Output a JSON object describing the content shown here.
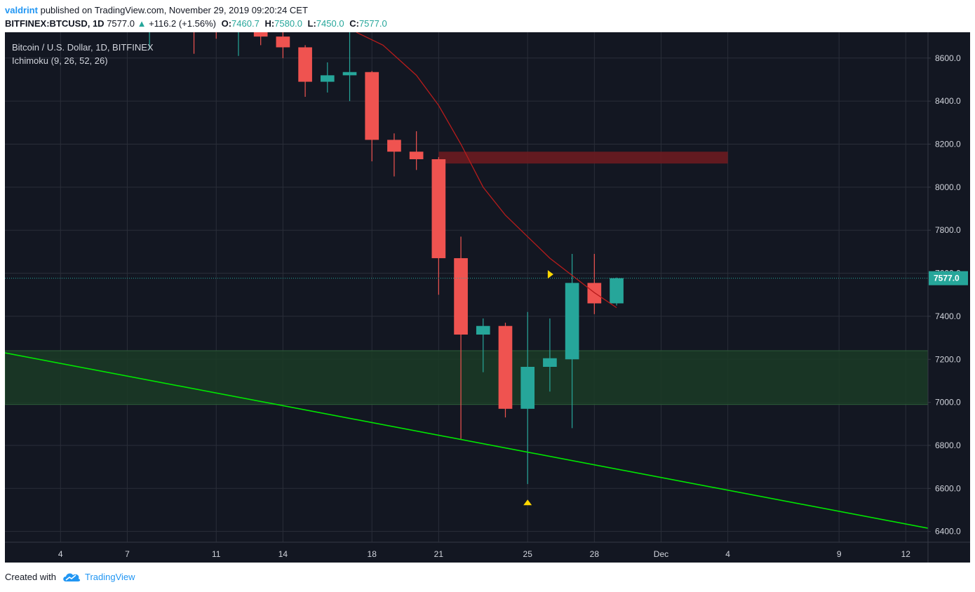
{
  "header": {
    "author": "valdrint",
    "published_text": "published on TradingView.com, November 29, 2019 09:20:24 CET",
    "symbol": "BITFINEX:BTCUSD, 1D",
    "last": "7577.0",
    "change": "+116.2 (+1.56%)",
    "ohlc": {
      "o_label": "O:",
      "o": "7460.7",
      "h_label": "H:",
      "h": "7580.0",
      "l_label": "L:",
      "l": "7450.0",
      "c_label": "C:",
      "c": "7577.0"
    }
  },
  "chart_data": {
    "type": "candlestick",
    "title": "Bitcoin / U.S. Dollar, 1D, BITFINEX",
    "indicator": "Ichimoku (9, 26, 52, 26)",
    "last_price_label": "7577.0",
    "ylim": [
      6350,
      8720
    ],
    "yticks": [
      6400,
      6600,
      6800,
      7000,
      7200,
      7400,
      7600,
      7800,
      8000,
      8200,
      8400,
      8600
    ],
    "ytick_labels": [
      "6400.0",
      "6600.0",
      "6800.0",
      "7000.0",
      "7200.0",
      "7400.0",
      "7600.0",
      "7800.0",
      "8000.0",
      "8200.0",
      "8400.0",
      "8600.0"
    ],
    "x_domain": [
      1.5,
      43.0
    ],
    "xticks": [
      {
        "day": 4,
        "label": "4"
      },
      {
        "day": 7,
        "label": "7"
      },
      {
        "day": 11,
        "label": "11"
      },
      {
        "day": 14,
        "label": "14"
      },
      {
        "day": 18,
        "label": "18"
      },
      {
        "day": 21,
        "label": "21"
      },
      {
        "day": 25,
        "label": "25"
      },
      {
        "day": 28,
        "label": "28"
      },
      {
        "day": 31,
        "label": "Dec"
      },
      {
        "day": 34,
        "label": "4"
      },
      {
        "day": 39,
        "label": "9"
      },
      {
        "day": 42,
        "label": "12"
      }
    ],
    "candles": [
      {
        "day": 8,
        "open": 8760,
        "high": 8800,
        "low": 8640,
        "close": 8760
      },
      {
        "day": 10,
        "open": 8790,
        "high": 8820,
        "low": 8620,
        "close": 8780
      },
      {
        "day": 11,
        "open": 8770,
        "high": 8790,
        "low": 8690,
        "close": 8760
      },
      {
        "day": 12,
        "open": 8720,
        "high": 8760,
        "low": 8610,
        "close": 8730
      },
      {
        "day": 13,
        "open": 8730,
        "high": 8780,
        "low": 8660,
        "close": 8700
      },
      {
        "day": 14,
        "open": 8700,
        "high": 8760,
        "low": 8600,
        "close": 8650
      },
      {
        "day": 15,
        "open": 8650,
        "high": 8660,
        "low": 8420,
        "close": 8490
      },
      {
        "day": 16,
        "open": 8490,
        "high": 8580,
        "low": 8440,
        "close": 8520
      },
      {
        "day": 17,
        "open": 8520,
        "high": 8780,
        "low": 8400,
        "close": 8535
      },
      {
        "day": 18,
        "open": 8535,
        "high": 8540,
        "low": 8120,
        "close": 8220
      },
      {
        "day": 19,
        "open": 8220,
        "high": 8250,
        "low": 8050,
        "close": 8165
      },
      {
        "day": 20,
        "open": 8165,
        "high": 8260,
        "low": 8080,
        "close": 8130
      },
      {
        "day": 21,
        "open": 8130,
        "high": 8140,
        "low": 7500,
        "close": 7670
      },
      {
        "day": 22,
        "open": 7670,
        "high": 7770,
        "low": 6830,
        "close": 7315
      },
      {
        "day": 23,
        "open": 7315,
        "high": 7390,
        "low": 7140,
        "close": 7355
      },
      {
        "day": 24,
        "open": 7355,
        "high": 7370,
        "low": 6930,
        "close": 6970
      },
      {
        "day": 25,
        "open": 6970,
        "high": 7420,
        "low": 6620,
        "close": 7165
      },
      {
        "day": 26,
        "open": 7165,
        "high": 7390,
        "low": 7050,
        "close": 7205
      },
      {
        "day": 27,
        "open": 7200,
        "high": 7690,
        "low": 6880,
        "close": 7555
      },
      {
        "day": 28,
        "open": 7555,
        "high": 7690,
        "low": 7410,
        "close": 7460
      },
      {
        "day": 29,
        "open": 7460,
        "high": 7580,
        "low": 7450,
        "close": 7577
      }
    ],
    "ichimoku_line": [
      {
        "day": 17.3,
        "price": 8720
      },
      {
        "day": 18.5,
        "price": 8660
      },
      {
        "day": 20,
        "price": 8520
      },
      {
        "day": 21,
        "price": 8380
      },
      {
        "day": 22,
        "price": 8200
      },
      {
        "day": 23,
        "price": 8000
      },
      {
        "day": 24,
        "price": 7870
      },
      {
        "day": 25,
        "price": 7770
      },
      {
        "day": 26,
        "price": 7670
      },
      {
        "day": 27,
        "price": 7590
      },
      {
        "day": 28,
        "price": 7510
      },
      {
        "day": 29,
        "price": 7440
      }
    ],
    "resistance_zone": {
      "day_start": 21,
      "day_end": 34,
      "price_low": 8110,
      "price_high": 8165
    },
    "support_zone": {
      "day_start": 1.5,
      "day_end": 43.0,
      "price_low": 6990,
      "price_high": 7240
    },
    "trendline": [
      {
        "day": 1.5,
        "price": 7230
      },
      {
        "day": 43.0,
        "price": 6415
      }
    ],
    "markers": [
      {
        "type": "triangle-up",
        "day": 25,
        "price": 6535
      },
      {
        "type": "triangle-right",
        "day": 26,
        "price": 7595
      }
    ]
  },
  "footer": {
    "created_with": "Created with",
    "brand": "TradingView"
  },
  "colors": {
    "background": "#131722",
    "grid": "#2a2e39",
    "up": "#26a69a",
    "down": "#ef5350",
    "axis_text": "#d1d4dc",
    "trendline": "#00e600",
    "ichimoku": "#b71c1c",
    "resistance": "#6b1b20",
    "support": "#1b3b26",
    "marker": "#ffd700",
    "price_line": "#26a69a"
  }
}
